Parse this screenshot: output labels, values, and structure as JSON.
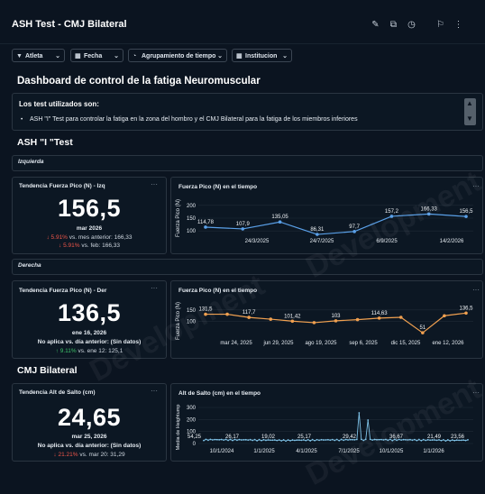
{
  "header": {
    "title": "ASH Test - CMJ Bilateral",
    "icons": [
      "edit-icon",
      "share-icon",
      "history-icon",
      "bookmark-icon",
      "more-icon"
    ]
  },
  "filters": [
    {
      "label": "Atleta",
      "icon": "filter-icon"
    },
    {
      "label": "Fecha",
      "icon": "calendar-icon"
    },
    {
      "label": "Agrupamiento de tiempo",
      "icon": "clock-icon"
    },
    {
      "label": "Institucion",
      "icon": "calendar-icon"
    }
  ],
  "dashboard_title": "Dashboard de control de la fatiga Neuromuscular",
  "tests_box": {
    "heading": "Los test utilizados son:",
    "item": "ASH \"I\" Test para controlar la fatiga en la zona del hombro y el CMJ Bilateral para la fatiga de los miembros inferiores"
  },
  "ash_section": {
    "title": "ASH \"I \"Test",
    "izquierda_label": "Izquierda",
    "derecha_label": "Derecha"
  },
  "cmj_section": {
    "title": "CMJ Bilateral"
  },
  "kpi_izq": {
    "title": "Tendencia Fuerza Pico (N) - Izq",
    "value": "156,5",
    "date": "mar 2026",
    "line1_pct": "5.91%",
    "line1_rest": "vs. mes anterior: 166,33",
    "line2_pct": "5.91%",
    "line2_rest": "vs. feb: 166,33"
  },
  "kpi_der": {
    "title": "Tendencia Fuerza Pico (N) - Der",
    "value": "136,5",
    "date": "ene 16, 2026",
    "line1": "No aplica vs. día anterior: (Sin datos)",
    "line2_pct": "9.11%",
    "line2_rest": "vs. ene 12: 125,1"
  },
  "kpi_cmj": {
    "title": "Tendencia Alt de Salto (cm)",
    "value": "24,65",
    "date": "mar 25, 2026",
    "line1": "No aplica vs. día anterior: (Sin datos)",
    "line2_pct": "21.21%",
    "line2_rest": "vs. mar 20: 31,29"
  },
  "watermark": "Development",
  "chart_data": [
    {
      "type": "line",
      "title": "Fuerza Pico (N) en el tiempo",
      "ylabel": "Fuerza Pico (N)",
      "yticks": [
        100,
        150,
        200
      ],
      "ylim": [
        90,
        210
      ],
      "xticks": [
        "24/3/2025",
        "24/7/2025",
        "6/9/2025",
        "14/2/2026"
      ],
      "values": [
        114.78,
        107.9,
        135.05,
        86.31,
        97.7,
        157.2,
        166.33,
        156.5
      ],
      "labels": [
        "114,78",
        "107,9",
        "135,05",
        "86,31",
        "97,7",
        "157,2",
        "166,33",
        "156,5"
      ],
      "color": "#5aa0e8"
    },
    {
      "type": "line",
      "title": "Fuerza Pico (N) en el tiempo",
      "ylabel": "Fuerza Pico (N)",
      "yticks": [
        100,
        150
      ],
      "ylim": [
        40,
        165
      ],
      "xticks": [
        "mar 24, 2025",
        "jun 29, 2025",
        "ago 19, 2025",
        "sep 6, 2025",
        "dic 15, 2025",
        "ene 12, 2026"
      ],
      "values": [
        131.5,
        131.5,
        117.7,
        110,
        101.42,
        95,
        103,
        108,
        114.63,
        118,
        51,
        125,
        136.5
      ],
      "labels": [
        "131,5",
        "",
        "117,7",
        "",
        "101,42",
        "",
        "103",
        "",
        "114,63",
        "",
        "51",
        "",
        "136,5"
      ],
      "color": "#f0a050"
    },
    {
      "type": "line",
      "title": "Alt de Salto (cm) en el tiempo",
      "ylabel": "Media de Heightump",
      "yticks": [
        0,
        100,
        200,
        300
      ],
      "ylim": [
        0,
        300
      ],
      "xticks": [
        "10/1/2024",
        "1/1/2025",
        "4/1/2025",
        "7/1/2025",
        "10/1/2025",
        "1/1/2026"
      ],
      "labels": [
        "54,25",
        "26,17",
        "19,02",
        "25,17",
        "29,42",
        "36,67",
        "21,49",
        "23,56"
      ],
      "color": "#7fc3e8"
    }
  ]
}
